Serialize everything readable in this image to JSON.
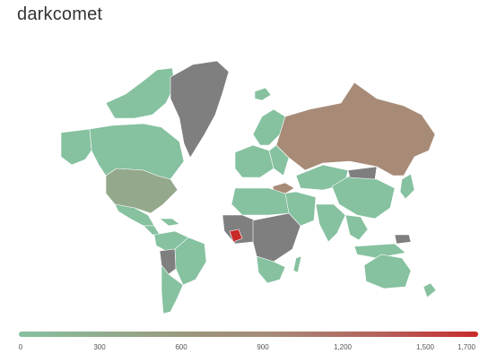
{
  "title": "darkcomet",
  "colors": {
    "low": "#86c1a0",
    "mid": "#a78b77",
    "high": "#c82a2a",
    "no_data": "#7f7f7f"
  },
  "legend": {
    "min": 0,
    "max": 1700,
    "ticks": [
      "0",
      "300",
      "600",
      "900",
      "1,200",
      "1,500",
      "1,700"
    ]
  },
  "map_regions": [
    {
      "name": "russia",
      "color": "#a78b77"
    },
    {
      "name": "turkey",
      "color": "#a78b77"
    },
    {
      "name": "ivory-coast",
      "color": "#c82a2a"
    },
    {
      "name": "greenland",
      "color": "#7f7f7f"
    }
  ]
}
